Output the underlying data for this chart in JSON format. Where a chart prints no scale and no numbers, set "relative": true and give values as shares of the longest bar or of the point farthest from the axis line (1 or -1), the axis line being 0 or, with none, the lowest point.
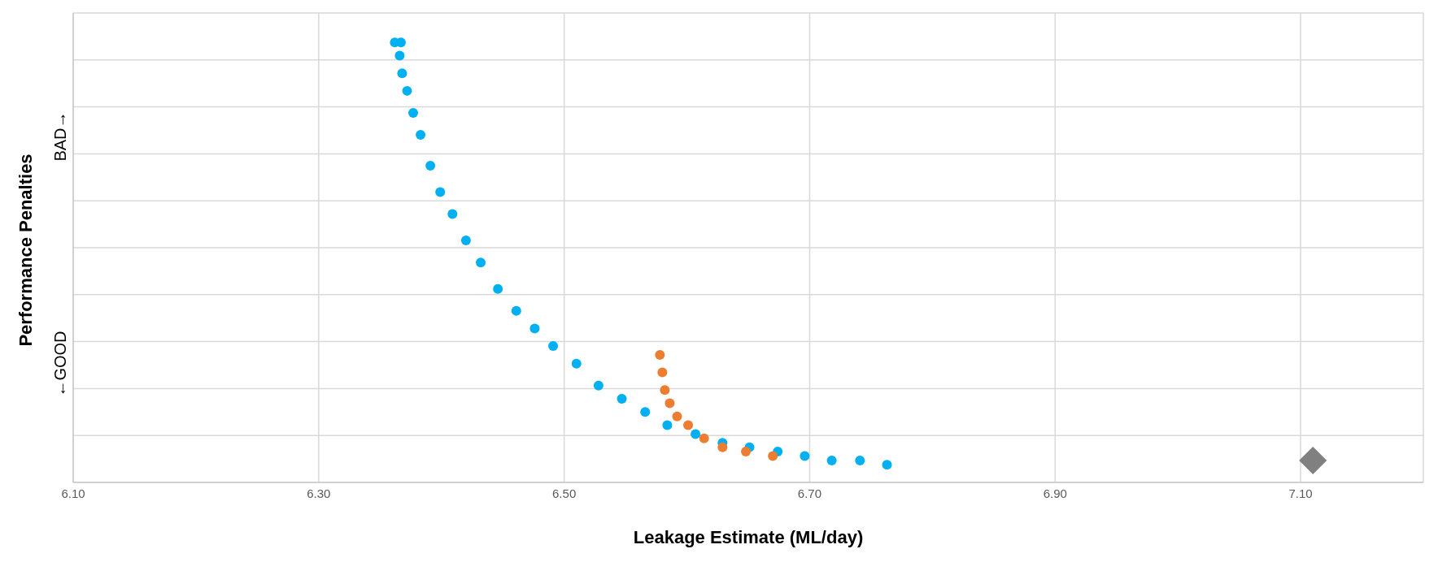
{
  "chart_data": {
    "type": "scatter",
    "xlabel": "Leakage Estimate (ML/day)",
    "ylabel": "Performance Penalties",
    "annotations": [
      "←GOOD",
      "BAD→"
    ],
    "relative": true,
    "xlim": [
      6.1,
      7.2
    ],
    "xticks": [
      {
        "value": 6.1,
        "label": "6.10"
      },
      {
        "value": 6.3,
        "label": "6.30"
      },
      {
        "value": 6.5,
        "label": "6.50"
      },
      {
        "value": 6.7,
        "label": "6.70"
      },
      {
        "value": 6.9,
        "label": "6.90"
      },
      {
        "value": 7.1,
        "label": "7.10"
      }
    ],
    "grid": true,
    "series": [
      {
        "color": "#00b0f0",
        "marker": "circle",
        "x": [
          6.362,
          6.367,
          6.366,
          6.368,
          6.372,
          6.377,
          6.383,
          6.391,
          6.399,
          6.409,
          6.42,
          6.432,
          6.446,
          6.461,
          6.476,
          6.491,
          6.51,
          6.528,
          6.547,
          6.566,
          6.584,
          6.607,
          6.629,
          6.651,
          6.674,
          6.696,
          6.718,
          6.741,
          6.763
        ],
        "values": [
          1.0,
          1.0,
          0.97,
          0.93,
          0.89,
          0.84,
          0.79,
          0.72,
          0.66,
          0.61,
          0.55,
          0.5,
          0.44,
          0.39,
          0.35,
          0.31,
          0.27,
          0.22,
          0.19,
          0.16,
          0.13,
          0.11,
          0.09,
          0.08,
          0.07,
          0.06,
          0.05,
          0.05,
          0.04
        ]
      },
      {
        "color": "#ed7d31",
        "marker": "circle",
        "x": [
          6.578,
          6.58,
          6.582,
          6.586,
          6.592,
          6.601,
          6.614,
          6.629,
          6.648,
          6.67
        ],
        "values": [
          0.29,
          0.25,
          0.21,
          0.18,
          0.15,
          0.13,
          0.1,
          0.08,
          0.07,
          0.06
        ]
      },
      {
        "color": "#808080",
        "marker": "diamond",
        "x": [
          7.11
        ],
        "values": [
          0.05
        ]
      }
    ]
  }
}
